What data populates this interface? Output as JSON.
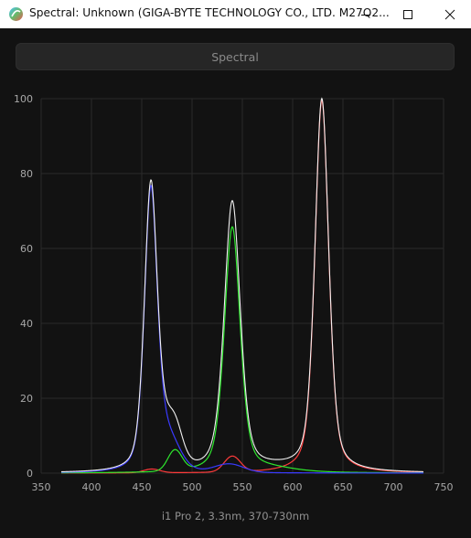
{
  "window": {
    "title": "Spectral: Unknown (GIGA-BYTE TECHNOLOGY CO., LTD. M27Q2...",
    "app_icon": "spectral-app-icon",
    "controls": [
      "minimize-icon",
      "maximize-icon",
      "close-icon"
    ]
  },
  "toolbar": {
    "spectral_label": "Spectral"
  },
  "caption": "i1 Pro 2, 3.3nm, 370-730nm",
  "colors": {
    "background": "#121212",
    "grid": "#2a2a2a",
    "total": "#f2f2f2",
    "red": "#ff3b3b",
    "green": "#2ee82e",
    "blue": "#3a3aff"
  },
  "chart_data": {
    "type": "line",
    "xlim": [
      350,
      750
    ],
    "ylim": [
      0,
      100
    ],
    "x_ticks": [
      350,
      400,
      450,
      500,
      550,
      600,
      650,
      700,
      750
    ],
    "y_ticks": [
      0,
      20,
      40,
      60,
      80,
      100
    ],
    "grid": true,
    "x_range": [
      370,
      730
    ],
    "series": [
      {
        "key": "blue",
        "peaks": [
          {
            "center": 459,
            "height": 73.5,
            "width": 6.5
          },
          {
            "center": 475,
            "height": 8,
            "width": 12
          },
          {
            "center": 537,
            "height": 2.2,
            "width": 14
          }
        ]
      },
      {
        "key": "green",
        "peaks": [
          {
            "center": 483,
            "height": 5.5,
            "width": 7
          },
          {
            "center": 540,
            "height": 65.5,
            "width": 8
          },
          {
            "center": 580,
            "height": 0.9,
            "width": 25
          }
        ]
      },
      {
        "key": "red",
        "peaks": [
          {
            "center": 460,
            "height": 1.0,
            "width": 8
          },
          {
            "center": 540,
            "height": 4.2,
            "width": 8
          },
          {
            "center": 629,
            "height": 99.5,
            "width": 7
          }
        ]
      },
      {
        "key": "total",
        "peaks": []
      }
    ]
  }
}
